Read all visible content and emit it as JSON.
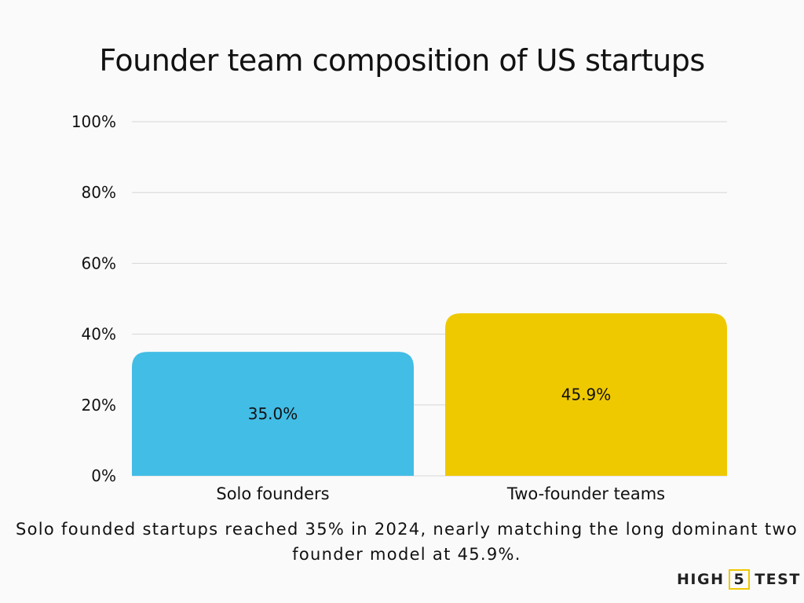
{
  "chart_data": {
    "type": "bar",
    "title": "Founder team composition of US startups",
    "categories": [
      "Solo founders",
      "Two-founder teams"
    ],
    "values": [
      35.0,
      45.9
    ],
    "data_labels": [
      "35.0%",
      "45.9%"
    ],
    "colors": [
      "#42bde6",
      "#efc900"
    ],
    "xlabel": "",
    "ylabel": "",
    "ylim": [
      0,
      100
    ],
    "yticks": [
      0,
      20,
      40,
      60,
      80,
      100
    ],
    "ytick_labels": [
      "0%",
      "20%",
      "40%",
      "60%",
      "80%",
      "100%"
    ],
    "grid": true,
    "legend": "none"
  },
  "caption": "Solo founded startups reached 35% in 2024, nearly matching the long dominant two founder model at 45.9%.",
  "logo": {
    "text": "HIGH 5 TEST",
    "left": "HIGH",
    "mid": "5",
    "right": "TEST",
    "accent": "#f0c800"
  }
}
